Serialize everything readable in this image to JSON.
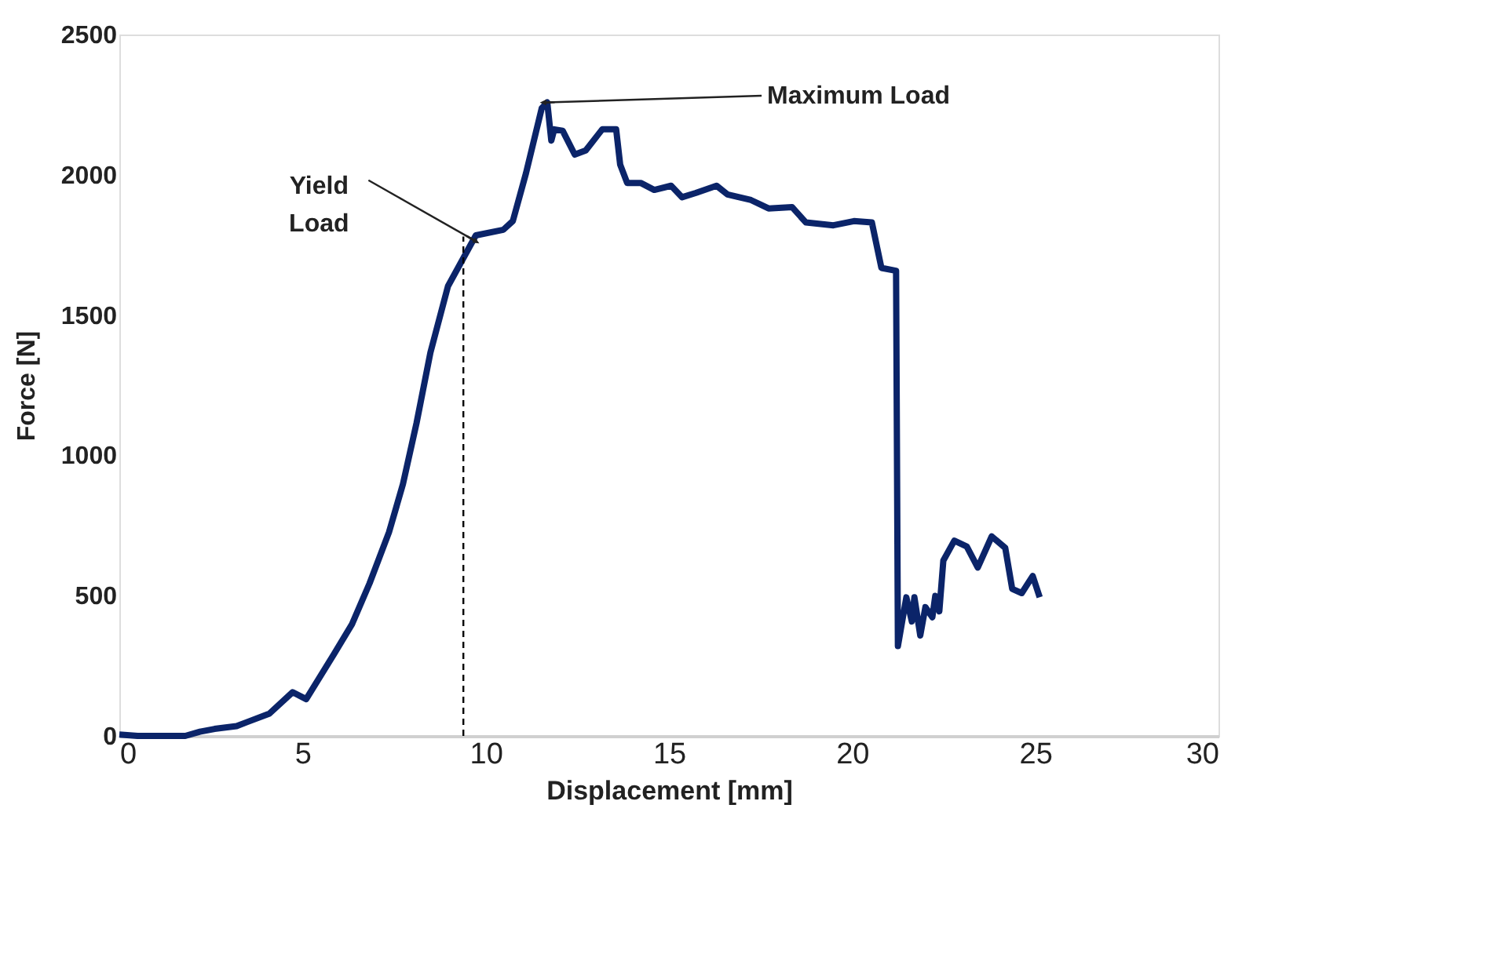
{
  "chart_data": {
    "type": "line",
    "xlabel": "Displacement [mm]",
    "ylabel": "Force [N]",
    "xlim": [
      0,
      30
    ],
    "xticks": [
      0,
      5,
      10,
      15,
      20,
      25,
      30
    ],
    "ylim": [
      0,
      2500
    ],
    "yticks": [
      0,
      500,
      1000,
      1500,
      2000,
      2500
    ],
    "grid": false,
    "line_style": "solid",
    "marker": "none",
    "series": [
      {
        "color": "#0b2469",
        "x": [
          0,
          0.5,
          1.1,
          1.8,
          2.2,
          2.6,
          3.2,
          3.5,
          4.1,
          4.73,
          5.1,
          5.86,
          6.35,
          6.83,
          7.36,
          7.74,
          8.11,
          8.49,
          8.97,
          9.73,
          10.48,
          10.74,
          11.1,
          11.53,
          11.68,
          11.79,
          11.87,
          12.1,
          12.43,
          12.73,
          13.18,
          13.56,
          13.67,
          13.86,
          14.23,
          14.6,
          15.06,
          15.36,
          15.73,
          16.3,
          16.6,
          17.24,
          17.72,
          18.36,
          18.74,
          19.49,
          20.05,
          20.54,
          20.8,
          21.2,
          21.25,
          21.48,
          21.63,
          21.7,
          21.86,
          22.0,
          22.19,
          22.27,
          22.38,
          22.49,
          22.79,
          23.13,
          23.43,
          23.81,
          24.18,
          24.37,
          24.63,
          24.93,
          25.12
        ],
        "values": [
          5,
          0,
          0,
          0,
          15,
          25,
          35,
          50,
          80,
          156,
          131,
          292,
          398,
          544,
          726,
          897,
          1114,
          1366,
          1603,
          1784,
          1804,
          1835,
          2006,
          2238,
          2258,
          2122,
          2162,
          2157,
          2072,
          2087,
          2162,
          2162,
          2036,
          1971,
          1971,
          1946,
          1961,
          1920,
          1935,
          1961,
          1930,
          1910,
          1880,
          1885,
          1830,
          1820,
          1835,
          1830,
          1668,
          1658,
          320,
          494,
          408,
          494,
          358,
          459,
          423,
          499,
          444,
          625,
          696,
          675,
          600,
          711,
          670,
          524,
          509,
          570,
          494
        ]
      },
      {
        "type": "line",
        "line_style": "dashed",
        "color": "#000000",
        "x": [
          9.39,
          9.39
        ],
        "values": [
          0,
          1780
        ]
      }
    ],
    "annotations": [
      {
        "text": "Maximum Load",
        "x": 11.68,
        "y": 2258
      },
      {
        "text": "Yield Load",
        "x": 9.65,
        "y": 1769
      }
    ]
  }
}
